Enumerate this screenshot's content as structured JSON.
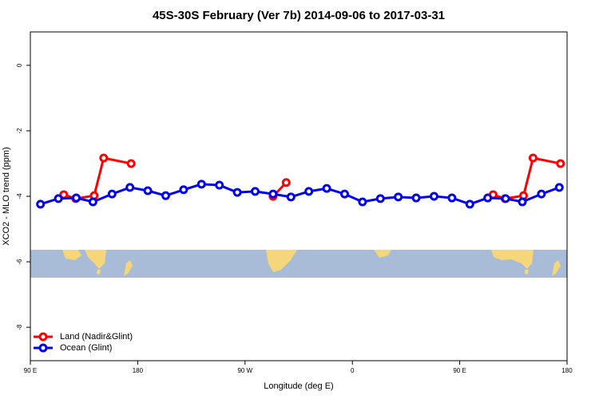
{
  "chart_data": {
    "type": "line",
    "title": "45S-30S February (Ver 7b)   2014-09-06 to 2017-03-31",
    "x_label": "Longitude (deg E)",
    "y_label": "XCO2 - MLO trend (ppm)",
    "xlim": [
      90,
      540
    ],
    "ylim": [
      -9.02,
      1.02
    ],
    "xticks": [
      {
        "value": 90,
        "label": "90 E"
      },
      180,
      {
        "value": 270,
        "label": "90 W"
      },
      {
        "value": 360,
        "label": "0"
      },
      {
        "value": 450,
        "label": "90 E"
      },
      {
        "value": 540,
        "label": "180"
      }
    ],
    "yticks": [
      0,
      -2,
      -4,
      -6,
      -8
    ],
    "legend": "bottom-left",
    "series": [
      {
        "name": "Land (Nadir&Glint)",
        "color": "#ff0000",
        "x": [
          118,
          128,
          143.5,
          151.5,
          174.5,
          null,
          293.5,
          304.5,
          null,
          478,
          488,
          503.5,
          511.5,
          534.5
        ],
        "values": [
          -3.95,
          -4.07,
          -3.98,
          -2.83,
          -3.0,
          null,
          -4.0,
          -3.58,
          null,
          -3.95,
          -4.07,
          -3.98,
          -2.83,
          -3.0
        ]
      },
      {
        "name": "Ocean (Glint)",
        "color": "#0000ee",
        "x": [
          98.5,
          113.5,
          128.5,
          142.5,
          158.5,
          173.5,
          188.5,
          203.5,
          218.5,
          233.5,
          248.5,
          263.5,
          278.5,
          293.5,
          308.5,
          323.5,
          338.5,
          353.5,
          368.5,
          383.5,
          398.5,
          413.5,
          428.5,
          443.5,
          458.5,
          473.5,
          488.5,
          502.5,
          518.5,
          533.5
        ],
        "values": [
          -4.24,
          -4.07,
          -4.05,
          -4.17,
          -3.93,
          -3.73,
          -3.83,
          -3.98,
          -3.8,
          -3.63,
          -3.66,
          -3.88,
          -3.85,
          -3.93,
          -4.02,
          -3.85,
          -3.76,
          -3.93,
          -4.17,
          -4.07,
          -4.02,
          -4.05,
          -4.0,
          -4.05,
          -4.24,
          -4.05,
          -4.07,
          -4.17,
          -3.93,
          -3.73
        ]
      }
    ]
  }
}
